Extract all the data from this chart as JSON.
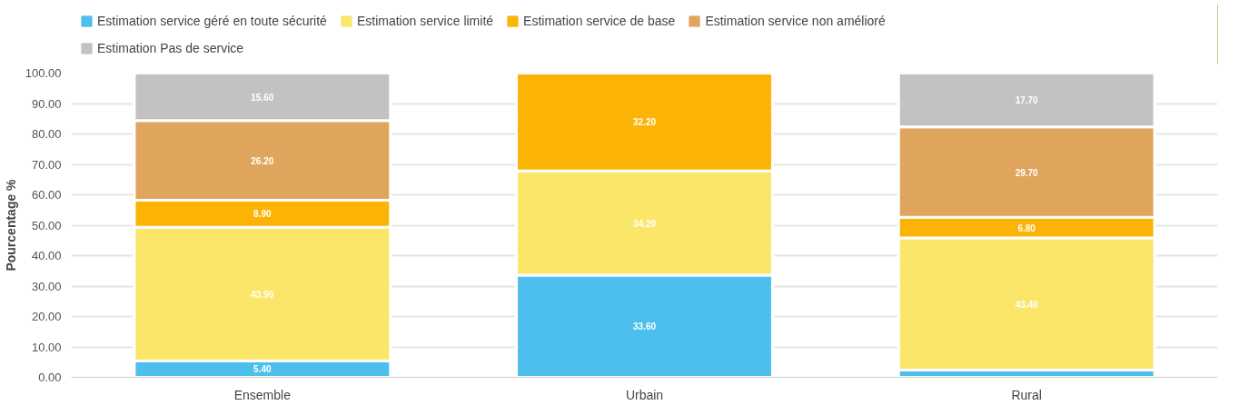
{
  "chart_data": {
    "type": "bar",
    "stacked": true,
    "ylabel": "Pourcentage %",
    "categories": [
      "Ensemble",
      "Urbain",
      "Rural"
    ],
    "series": [
      {
        "name": "Estimation service géré en toute sécurité",
        "color": "#4dbfec",
        "values": [
          5.4,
          33.6,
          2.4
        ],
        "value_labels": [
          "5.40",
          "33.60",
          null
        ]
      },
      {
        "name": "Estimation service limité",
        "color": "#fbe66a",
        "values": [
          43.9,
          34.2,
          43.4
        ],
        "value_labels": [
          "43.90",
          "34.20",
          "43.40"
        ]
      },
      {
        "name": "Estimation service de base",
        "color": "#fbb405",
        "values": [
          8.9,
          32.2,
          6.8
        ],
        "value_labels": [
          "8.90",
          "32.20",
          "6.80"
        ]
      },
      {
        "name": "Estimation service non amélioré",
        "color": "#e0a55c",
        "values": [
          26.2,
          0,
          29.7
        ],
        "value_labels": [
          "26.20",
          null,
          "29.70"
        ]
      },
      {
        "name": "Estimation Pas de service",
        "color": "#c2c2c0",
        "values": [
          15.6,
          0,
          17.7
        ],
        "value_labels": [
          "15.60",
          null,
          "17.70"
        ]
      }
    ],
    "ylim": [
      0,
      100
    ],
    "yticks": [
      {
        "value": 0,
        "label": "0.00"
      },
      {
        "value": 10,
        "label": "10.00"
      },
      {
        "value": 20,
        "label": "20.00"
      },
      {
        "value": 30,
        "label": "30.00"
      },
      {
        "value": 40,
        "label": "40.00"
      },
      {
        "value": 50,
        "label": "50.00"
      },
      {
        "value": 60,
        "label": "60.00"
      },
      {
        "value": 70,
        "label": "70.00"
      },
      {
        "value": 80,
        "label": "80.00"
      },
      {
        "value": 90,
        "label": "90.00"
      },
      {
        "value": 100,
        "label": "100.00"
      }
    ],
    "grid": "y",
    "legend": "top"
  }
}
